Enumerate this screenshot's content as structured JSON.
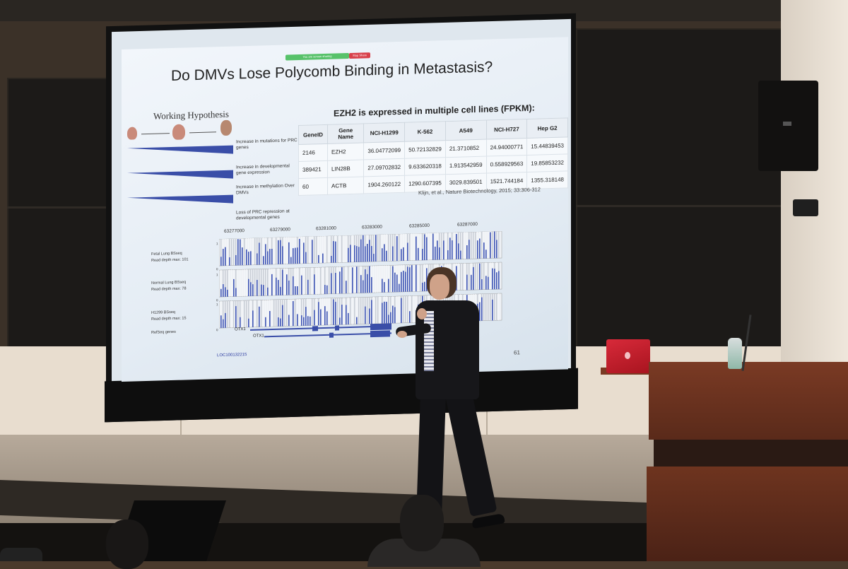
{
  "slide": {
    "title": "Do DMVs Lose Polycomb Binding in Metastasis?",
    "screen_share_label": "You are screen sharing",
    "stop_share_label": "Stop Share",
    "hypothesis": {
      "heading": "Working Hypothesis",
      "items": [
        "Increase in mutations for PRC genes",
        "Increase in developmental gene expression",
        "Increase in methylation Over DMVs",
        "Loss of PRC repression at developmental genes"
      ]
    },
    "table": {
      "title": "EZH2 is expressed in multiple cell lines (FPKM):",
      "columns": [
        "GeneID",
        "Gene Name",
        "NCI-H1299",
        "K-562",
        "A549",
        "NCI-H727",
        "Hep G2"
      ],
      "rows": [
        [
          "2146",
          "EZH2",
          "36.04772099",
          "50.72132829",
          "21.3710852",
          "24.94000771",
          "15.44839453"
        ],
        [
          "389421",
          "LIN28B",
          "27.09702832",
          "9.633620318",
          "1.913542959",
          "0.558929563",
          "19.85853232"
        ],
        [
          "60",
          "ACTB",
          "1904.260122",
          "1290.607395",
          "3029.839501",
          "1521.744184",
          "1355.318148"
        ]
      ],
      "citation": "Klijn, et al., Nature Biotechnology, 2015; 33:306-312"
    },
    "browser": {
      "coordinates": [
        "63277000",
        "63279000",
        "63281000",
        "63283000",
        "63285000",
        "63287000"
      ],
      "tracks": [
        {
          "name": "Fetal Lung BSseq",
          "depth": "Read depth max: 101"
        },
        {
          "name": "Normal Lung BSseq",
          "depth": "Read depth max: 78"
        },
        {
          "name": "H1299 BSseq",
          "depth": "Read depth max: 15"
        }
      ],
      "refseq_label": "RefSeq genes",
      "gene_label_1": "OTX1",
      "gene_label_2": "OTX1",
      "loc_label": "LOC100132215",
      "tick_one": "1",
      "tick_zero": "0"
    },
    "page_number": "61"
  },
  "colors": {
    "track_blue": "#3f55b5",
    "track_grey": "#c7ccd4",
    "wedge_blue": "#3a4ea8"
  }
}
